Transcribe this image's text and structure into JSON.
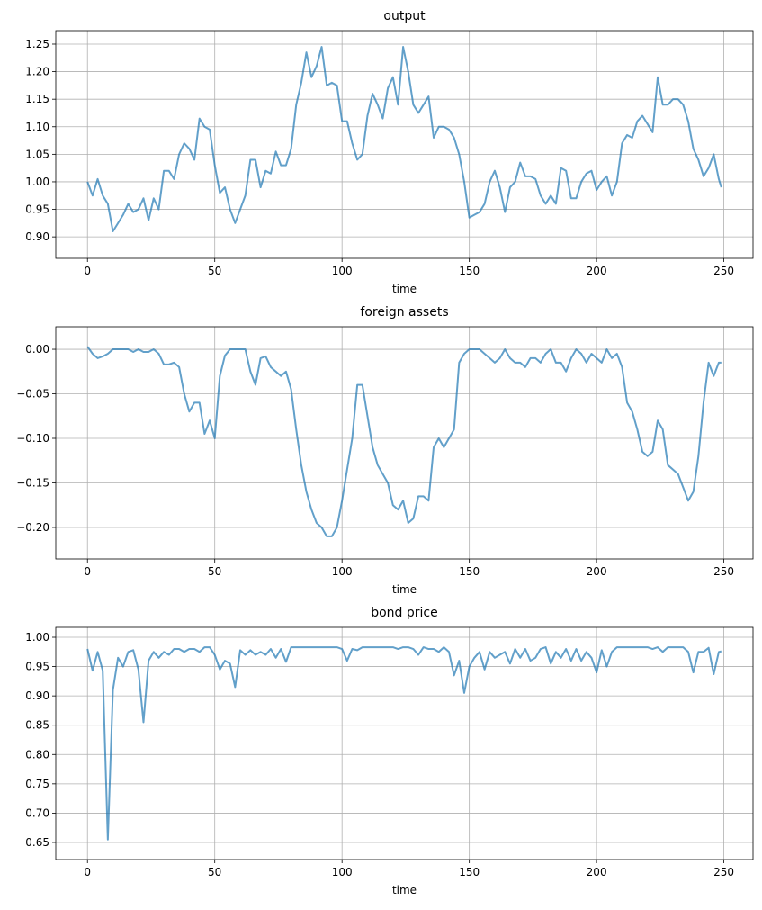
{
  "chart_data": [
    {
      "type": "line",
      "title": "output",
      "xlabel": "time",
      "color": "#1f77b4",
      "alpha": 0.7,
      "grid": true,
      "xlim": [
        -12.45,
        261.45
      ],
      "xticks": [
        0,
        50,
        100,
        150,
        200,
        250
      ],
      "ylim": [
        0.861,
        1.2745
      ],
      "yticks": [
        {
          "value": 0.9,
          "label": "0.90"
        },
        0.95,
        {
          "value": 1.0,
          "label": "1.00"
        },
        1.05,
        {
          "value": 1.1,
          "label": "1.10"
        },
        1.15,
        {
          "value": 1.2,
          "label": "1.20"
        },
        1.25
      ],
      "x": [
        0,
        2,
        4,
        6,
        8,
        10,
        12,
        14,
        16,
        18,
        20,
        22,
        24,
        26,
        28,
        30,
        32,
        34,
        36,
        38,
        40,
        42,
        44,
        46,
        48,
        50,
        52,
        54,
        56,
        58,
        60,
        62,
        64,
        66,
        68,
        70,
        72,
        74,
        76,
        78,
        80,
        82,
        84,
        86,
        88,
        90,
        92,
        94,
        96,
        98,
        100,
        102,
        104,
        106,
        108,
        110,
        112,
        114,
        116,
        118,
        120,
        122,
        124,
        126,
        128,
        130,
        132,
        134,
        136,
        138,
        140,
        142,
        144,
        146,
        148,
        150,
        152,
        154,
        156,
        158,
        160,
        162,
        164,
        166,
        168,
        170,
        172,
        174,
        176,
        178,
        180,
        182,
        184,
        186,
        188,
        190,
        192,
        194,
        196,
        198,
        200,
        202,
        204,
        206,
        208,
        210,
        212,
        214,
        216,
        218,
        220,
        222,
        224,
        226,
        228,
        230,
        232,
        234,
        236,
        238,
        240,
        242,
        244,
        246,
        248,
        249
      ],
      "values": [
        1.0,
        0.975,
        1.005,
        0.975,
        0.96,
        0.91,
        0.925,
        0.94,
        0.96,
        0.945,
        0.95,
        0.97,
        0.93,
        0.97,
        0.95,
        1.02,
        1.02,
        1.005,
        1.05,
        1.07,
        1.06,
        1.04,
        1.115,
        1.1,
        1.095,
        1.03,
        0.98,
        0.99,
        0.95,
        0.925,
        0.95,
        0.975,
        1.04,
        1.04,
        0.99,
        1.02,
        1.015,
        1.055,
        1.03,
        1.03,
        1.06,
        1.14,
        1.18,
        1.235,
        1.19,
        1.21,
        1.245,
        1.175,
        1.18,
        1.175,
        1.11,
        1.11,
        1.07,
        1.04,
        1.05,
        1.12,
        1.16,
        1.14,
        1.115,
        1.17,
        1.19,
        1.14,
        1.245,
        1.2,
        1.14,
        1.125,
        1.14,
        1.155,
        1.08,
        1.1,
        1.1,
        1.095,
        1.08,
        1.05,
        1.0,
        0.935,
        0.94,
        0.945,
        0.96,
        1.0,
        1.02,
        0.99,
        0.945,
        0.99,
        1.0,
        1.035,
        1.01,
        1.01,
        1.005,
        0.975,
        0.96,
        0.975,
        0.96,
        1.025,
        1.02,
        0.97,
        0.97,
        1.0,
        1.015,
        1.02,
        0.985,
        1.0,
        1.01,
        0.975,
        1.0,
        1.07,
        1.085,
        1.08,
        1.11,
        1.12,
        1.105,
        1.09,
        1.19,
        1.14,
        1.14,
        1.15,
        1.15,
        1.14,
        1.11,
        1.06,
        1.04,
        1.01,
        1.025,
        1.05,
        1.005,
        0.99
      ]
    },
    {
      "type": "line",
      "title": "foreign assets",
      "xlabel": "time",
      "color": "#1f77b4",
      "alpha": 0.7,
      "grid": true,
      "xlim": [
        -12.45,
        261.45
      ],
      "xticks": [
        0,
        50,
        100,
        150,
        200,
        250
      ],
      "ylim": [
        -0.2354,
        0.0253
      ],
      "yticks": [
        {
          "value": -0.2,
          "label": "−0.20"
        },
        {
          "value": -0.15,
          "label": "−0.15"
        },
        {
          "value": -0.1,
          "label": "−0.10"
        },
        {
          "value": -0.05,
          "label": "−0.05"
        },
        {
          "value": 0,
          "label": "0.00"
        }
      ],
      "x": [
        0,
        2,
        4,
        6,
        8,
        10,
        12,
        14,
        16,
        18,
        20,
        22,
        24,
        26,
        28,
        30,
        32,
        34,
        36,
        38,
        40,
        42,
        44,
        46,
        48,
        50,
        52,
        54,
        56,
        58,
        60,
        62,
        64,
        66,
        68,
        70,
        72,
        74,
        76,
        78,
        80,
        82,
        84,
        86,
        88,
        90,
        92,
        94,
        96,
        98,
        100,
        102,
        104,
        106,
        108,
        110,
        112,
        114,
        116,
        118,
        120,
        122,
        124,
        126,
        128,
        130,
        132,
        134,
        136,
        138,
        140,
        142,
        144,
        146,
        148,
        150,
        152,
        154,
        156,
        158,
        160,
        162,
        164,
        166,
        168,
        170,
        172,
        174,
        176,
        178,
        180,
        182,
        184,
        186,
        188,
        190,
        192,
        194,
        196,
        198,
        200,
        202,
        204,
        206,
        208,
        210,
        212,
        214,
        216,
        218,
        220,
        222,
        224,
        226,
        228,
        230,
        232,
        234,
        236,
        238,
        240,
        242,
        244,
        246,
        248,
        249
      ],
      "values": [
        0.003,
        -0.005,
        -0.01,
        -0.008,
        -0.005,
        0,
        0,
        0,
        0,
        -0.003,
        0,
        -0.003,
        -0.003,
        0,
        -0.005,
        -0.017,
        -0.017,
        -0.015,
        -0.02,
        -0.05,
        -0.07,
        -0.06,
        -0.06,
        -0.095,
        -0.08,
        -0.1,
        -0.03,
        -0.007,
        0,
        0,
        0,
        0,
        -0.025,
        -0.04,
        -0.01,
        -0.008,
        -0.02,
        -0.025,
        -0.03,
        -0.025,
        -0.045,
        -0.09,
        -0.13,
        -0.16,
        -0.18,
        -0.195,
        -0.2,
        -0.21,
        -0.21,
        -0.2,
        -0.17,
        -0.135,
        -0.1,
        -0.04,
        -0.04,
        -0.075,
        -0.11,
        -0.13,
        -0.14,
        -0.15,
        -0.175,
        -0.18,
        -0.17,
        -0.195,
        -0.19,
        -0.165,
        -0.165,
        -0.17,
        -0.11,
        -0.1,
        -0.11,
        -0.1,
        -0.09,
        -0.015,
        -0.005,
        0,
        0,
        0,
        -0.005,
        -0.01,
        -0.015,
        -0.01,
        0,
        -0.01,
        -0.015,
        -0.015,
        -0.02,
        -0.01,
        -0.01,
        -0.015,
        -0.005,
        0,
        -0.015,
        -0.015,
        -0.025,
        -0.01,
        0,
        -0.005,
        -0.015,
        -0.005,
        -0.01,
        -0.015,
        0,
        -0.01,
        -0.005,
        -0.02,
        -0.06,
        -0.07,
        -0.09,
        -0.115,
        -0.12,
        -0.115,
        -0.08,
        -0.09,
        -0.13,
        -0.135,
        -0.14,
        -0.155,
        -0.17,
        -0.16,
        -0.12,
        -0.06,
        -0.015,
        -0.03,
        -0.015,
        -0.015
      ]
    },
    {
      "type": "line",
      "title": "bond price",
      "xlabel": "time",
      "color": "#1f77b4",
      "alpha": 0.7,
      "grid": true,
      "xlim": [
        -12.45,
        261.45
      ],
      "xticks": [
        0,
        50,
        100,
        150,
        200,
        250
      ],
      "ylim": [
        0.6208,
        1.0169
      ],
      "yticks": [
        0.65,
        {
          "value": 0.7,
          "label": "0.70"
        },
        0.75,
        {
          "value": 0.8,
          "label": "0.80"
        },
        0.85,
        {
          "value": 0.9,
          "label": "0.90"
        },
        0.95,
        {
          "value": 1.0,
          "label": "1.00"
        }
      ],
      "x": [
        0,
        2,
        4,
        6,
        8,
        10,
        12,
        14,
        16,
        18,
        20,
        22,
        24,
        26,
        28,
        30,
        32,
        34,
        36,
        38,
        40,
        42,
        44,
        46,
        48,
        50,
        52,
        54,
        56,
        58,
        60,
        62,
        64,
        66,
        68,
        70,
        72,
        74,
        76,
        78,
        80,
        82,
        84,
        86,
        88,
        90,
        92,
        94,
        96,
        98,
        100,
        102,
        104,
        106,
        108,
        110,
        112,
        114,
        116,
        118,
        120,
        122,
        124,
        126,
        128,
        130,
        132,
        134,
        136,
        138,
        140,
        142,
        144,
        146,
        148,
        150,
        152,
        154,
        156,
        158,
        160,
        162,
        164,
        166,
        168,
        170,
        172,
        174,
        176,
        178,
        180,
        182,
        184,
        186,
        188,
        190,
        192,
        194,
        196,
        198,
        200,
        202,
        204,
        206,
        208,
        210,
        212,
        214,
        216,
        218,
        220,
        222,
        224,
        226,
        228,
        230,
        232,
        234,
        236,
        238,
        240,
        242,
        244,
        246,
        248,
        249
      ],
      "values": [
        0.98,
        0.943,
        0.975,
        0.943,
        0.655,
        0.91,
        0.965,
        0.95,
        0.975,
        0.978,
        0.945,
        0.855,
        0.96,
        0.975,
        0.965,
        0.975,
        0.97,
        0.98,
        0.98,
        0.975,
        0.98,
        0.98,
        0.975,
        0.983,
        0.983,
        0.97,
        0.945,
        0.96,
        0.955,
        0.915,
        0.978,
        0.97,
        0.978,
        0.97,
        0.975,
        0.97,
        0.98,
        0.965,
        0.98,
        0.958,
        0.983,
        0.983,
        0.983,
        0.983,
        0.983,
        0.983,
        0.983,
        0.983,
        0.983,
        0.983,
        0.98,
        0.96,
        0.98,
        0.978,
        0.983,
        0.983,
        0.983,
        0.983,
        0.983,
        0.983,
        0.983,
        0.98,
        0.983,
        0.983,
        0.98,
        0.97,
        0.983,
        0.98,
        0.98,
        0.975,
        0.983,
        0.975,
        0.935,
        0.96,
        0.905,
        0.95,
        0.965,
        0.975,
        0.945,
        0.975,
        0.965,
        0.97,
        0.975,
        0.955,
        0.98,
        0.965,
        0.98,
        0.96,
        0.965,
        0.98,
        0.983,
        0.955,
        0.975,
        0.965,
        0.98,
        0.96,
        0.98,
        0.96,
        0.975,
        0.965,
        0.94,
        0.978,
        0.95,
        0.975,
        0.983,
        0.983,
        0.983,
        0.983,
        0.983,
        0.983,
        0.983,
        0.98,
        0.983,
        0.975,
        0.983,
        0.983,
        0.983,
        0.983,
        0.975,
        0.94,
        0.975,
        0.975,
        0.982,
        0.937,
        0.975,
        0.976
      ]
    }
  ]
}
